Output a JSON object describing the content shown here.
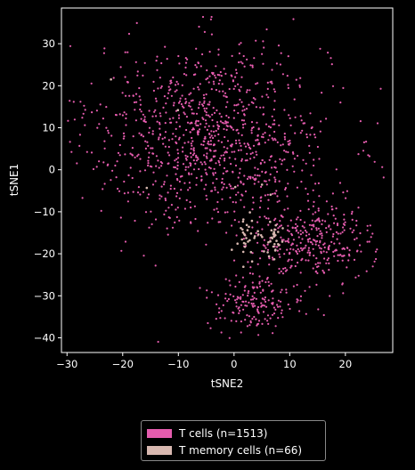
{
  "chart_data": {
    "type": "scatter",
    "title": "",
    "xlabel": "tSNE2",
    "ylabel": "tSNE1",
    "xlim": [
      -31,
      28.5
    ],
    "ylim": [
      -43.5,
      38.5
    ],
    "xticks": [
      -30,
      -20,
      -10,
      0,
      10,
      20
    ],
    "yticks": [
      -40,
      -30,
      -20,
      -10,
      0,
      10,
      20,
      30
    ],
    "grid": false,
    "legend_placement": "below",
    "background": "#000000",
    "series": [
      {
        "name": "T cells (n=1513)",
        "color": "#e55cae",
        "count": 1513,
        "clusters": [
          {
            "cx": -4,
            "cy": 8,
            "sx": 10.5,
            "sy": 11,
            "n": 1000
          },
          {
            "cx": 14,
            "cy": -17,
            "sx": 5.5,
            "sy": 4.8,
            "n": 330
          },
          {
            "cx": 4,
            "cy": -32,
            "sx": 4.5,
            "sy": 3.2,
            "n": 170
          },
          {
            "cx": 24,
            "cy": 4,
            "sx": 0.4,
            "sy": 0.3,
            "n": 4
          },
          {
            "cx": -25,
            "cy": 12,
            "sx": 2.5,
            "sy": 4,
            "n": 9
          }
        ]
      },
      {
        "name": "T memory cells (n=66)",
        "color": "#d8b8b0",
        "count": 66,
        "clusters": [
          {
            "cx": 2,
            "cy": -17,
            "sx": 1.0,
            "sy": 2.5,
            "n": 30
          },
          {
            "cx": 7,
            "cy": -17,
            "sx": 1.0,
            "sy": 2.5,
            "n": 30
          },
          {
            "cx": 3,
            "cy": -6,
            "sx": 6,
            "sy": 3,
            "n": 3
          },
          {
            "cx": -20,
            "cy": 10,
            "sx": 4,
            "sy": 10,
            "n": 3
          }
        ]
      }
    ]
  }
}
